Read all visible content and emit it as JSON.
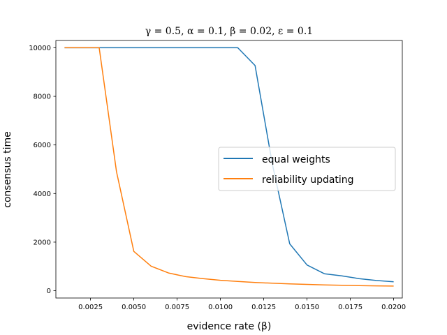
{
  "chart_data": {
    "type": "line",
    "title": "γ = 0.5, α = 0.1, β = 0.02, ε = 0.1",
    "xlabel": "evidence rate (β)",
    "ylabel": "consensus time",
    "xlim": [
      0.0005,
      0.0205
    ],
    "ylim": [
      -300,
      10300
    ],
    "xticks": [
      0.0025,
      0.005,
      0.0075,
      0.01,
      0.0125,
      0.015,
      0.0175,
      0.02
    ],
    "xtick_labels": [
      "0.0025",
      "0.0050",
      "0.0075",
      "0.0100",
      "0.0125",
      "0.0150",
      "0.0175",
      "0.0200"
    ],
    "yticks": [
      0,
      2000,
      4000,
      6000,
      8000,
      10000
    ],
    "ytick_labels": [
      "0",
      "2000",
      "4000",
      "6000",
      "8000",
      "10000"
    ],
    "grid": false,
    "legend_position": "right",
    "series": [
      {
        "name": "equal weights",
        "color": "#1f77b4",
        "x": [
          0.001,
          0.002,
          0.003,
          0.004,
          0.005,
          0.006,
          0.007,
          0.008,
          0.009,
          0.01,
          0.011,
          0.012,
          0.013,
          0.014,
          0.015,
          0.016,
          0.017,
          0.018,
          0.019,
          0.02
        ],
        "y": [
          10000,
          10000,
          10000,
          10000,
          10000,
          10000,
          10000,
          10000,
          10000,
          10000,
          10000,
          9270,
          5200,
          1930,
          1060,
          700,
          610,
          500,
          420,
          370
        ]
      },
      {
        "name": "reliability updating",
        "color": "#ff7f0e",
        "x": [
          0.001,
          0.002,
          0.003,
          0.004,
          0.005,
          0.006,
          0.007,
          0.008,
          0.009,
          0.01,
          0.011,
          0.012,
          0.013,
          0.014,
          0.015,
          0.016,
          0.017,
          0.018,
          0.019,
          0.02
        ],
        "y": [
          10000,
          10000,
          10000,
          4900,
          1620,
          1010,
          730,
          580,
          500,
          430,
          380,
          340,
          310,
          280,
          260,
          240,
          225,
          210,
          200,
          190
        ]
      }
    ]
  }
}
